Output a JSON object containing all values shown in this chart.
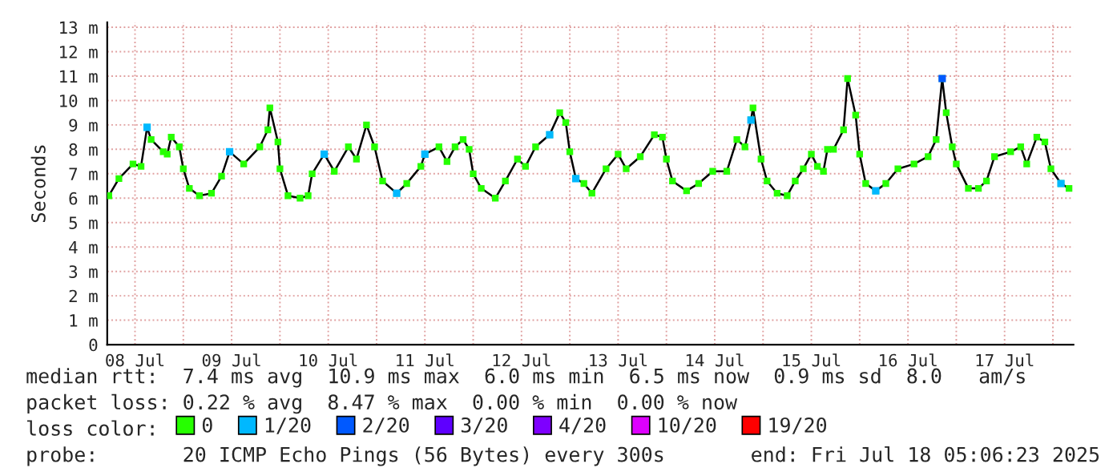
{
  "chart_data": {
    "type": "line",
    "ylabel": "Seconds",
    "x": [
      "2025-07-08T05:30",
      "2025-07-08T08:00",
      "2025-07-08T11:30",
      "2025-07-08T13:30",
      "2025-07-08T15:00",
      "2025-07-08T16:00",
      "2025-07-08T19:00",
      "2025-07-08T20:00",
      "2025-07-08T21:00",
      "2025-07-08T23:00",
      "2025-07-09T00:00",
      "2025-07-09T01:30",
      "2025-07-09T04:00",
      "2025-07-09T07:00",
      "2025-07-09T09:30",
      "2025-07-09T11:30",
      "2025-07-09T15:00",
      "2025-07-09T19:00",
      "2025-07-09T21:00",
      "2025-07-09T21:30",
      "2025-07-09T23:30",
      "2025-07-10T00:00",
      "2025-07-10T02:00",
      "2025-07-10T05:00",
      "2025-07-10T07:00",
      "2025-07-10T08:00",
      "2025-07-10T11:00",
      "2025-07-10T13:30",
      "2025-07-10T17:00",
      "2025-07-10T19:00",
      "2025-07-10T21:30",
      "2025-07-10T23:30",
      "2025-07-11T01:30",
      "2025-07-11T05:00",
      "2025-07-11T07:30",
      "2025-07-11T11:00",
      "2025-07-11T12:00",
      "2025-07-11T15:30",
      "2025-07-11T17:30",
      "2025-07-11T19:30",
      "2025-07-11T21:30",
      "2025-07-11T23:00",
      "2025-07-12T00:00",
      "2025-07-12T02:00",
      "2025-07-12T05:30",
      "2025-07-12T08:00",
      "2025-07-12T11:00",
      "2025-07-12T13:00",
      "2025-07-12T15:30",
      "2025-07-12T19:00",
      "2025-07-12T21:30",
      "2025-07-12T23:00",
      "2025-07-13T00:00",
      "2025-07-13T01:30",
      "2025-07-13T03:30",
      "2025-07-13T05:30",
      "2025-07-13T09:00",
      "2025-07-13T12:00",
      "2025-07-13T14:00",
      "2025-07-13T17:30",
      "2025-07-13T21:00",
      "2025-07-13T23:00",
      "2025-07-14T00:00",
      "2025-07-14T01:30",
      "2025-07-14T05:00",
      "2025-07-14T08:00",
      "2025-07-14T11:30",
      "2025-07-14T15:00",
      "2025-07-14T17:30",
      "2025-07-14T19:30",
      "2025-07-14T21:00",
      "2025-07-14T21:30",
      "2025-07-14T23:30",
      "2025-07-15T01:00",
      "2025-07-15T03:30",
      "2025-07-15T06:00",
      "2025-07-15T08:00",
      "2025-07-15T10:00",
      "2025-07-15T12:00",
      "2025-07-15T13:30",
      "2025-07-15T15:00",
      "2025-07-15T16:00",
      "2025-07-15T17:30",
      "2025-07-15T20:00",
      "2025-07-15T21:00",
      "2025-07-15T23:00",
      "2025-07-16T00:00",
      "2025-07-16T01:30",
      "2025-07-16T04:00",
      "2025-07-16T06:30",
      "2025-07-16T09:30",
      "2025-07-16T13:30",
      "2025-07-16T17:00",
      "2025-07-16T19:00",
      "2025-07-16T20:30",
      "2025-07-16T21:30",
      "2025-07-16T23:00",
      "2025-07-17T00:00",
      "2025-07-17T03:00",
      "2025-07-17T05:30",
      "2025-07-17T07:30",
      "2025-07-17T09:30",
      "2025-07-17T13:30",
      "2025-07-17T16:00",
      "2025-07-17T17:30",
      "2025-07-17T20:00",
      "2025-07-17T22:00",
      "2025-07-17T23:30",
      "2025-07-18T02:00",
      "2025-07-18T04:00"
    ],
    "series": [
      {
        "name": "0",
        "color": "#26ff00",
        "values": [
          6.1,
          6.8,
          7.4,
          7.3,
          8.9,
          8.4,
          7.9,
          7.8,
          8.5,
          8.1,
          7.2,
          6.4,
          6.1,
          6.2,
          6.9,
          7.9,
          7.4,
          8.1,
          8.8,
          9.7,
          8.3,
          7.2,
          6.1,
          6.0,
          6.1,
          7.0,
          7.8,
          7.1,
          8.1,
          7.6,
          9.0,
          8.1,
          6.7,
          6.2,
          6.6,
          7.3,
          7.8,
          8.1,
          7.5,
          8.1,
          8.4,
          8.0,
          7.0,
          6.4,
          6.0,
          6.7,
          7.6,
          7.3,
          8.1,
          8.6,
          9.5,
          9.1,
          7.9,
          6.8,
          6.6,
          6.2,
          7.2,
          7.8,
          7.2,
          7.7,
          8.6,
          8.5,
          7.6,
          6.7,
          6.3,
          6.6,
          7.1,
          7.1,
          8.4,
          8.1,
          9.2,
          9.7,
          7.6,
          6.7,
          6.2,
          6.1,
          6.7,
          7.2,
          7.8,
          7.3,
          7.1,
          8.0,
          8.0,
          8.8,
          10.9,
          9.4,
          7.8,
          6.6,
          6.3,
          6.6,
          7.2,
          7.4,
          7.7,
          8.4,
          10.9,
          9.5,
          8.1,
          7.4,
          6.4,
          6.4,
          6.7,
          7.7,
          7.9,
          8.1,
          7.4,
          8.5,
          8.3,
          7.2,
          6.6,
          6.4
        ]
      },
      {
        "name": "1/20",
        "color": "#00b8ff",
        "type": "scatter",
        "x": [
          "2025-07-08T15:00",
          "2025-07-09T11:30",
          "2025-07-10T11:00",
          "2025-07-11T05:00",
          "2025-07-11T12:00",
          "2025-07-12T19:00",
          "2025-07-13T01:30",
          "2025-07-14T21:00",
          "2025-07-16T04:00",
          "2025-07-18T02:00"
        ],
        "values": [
          8.9,
          7.9,
          7.8,
          6.2,
          7.8,
          8.6,
          6.8,
          9.2,
          6.3,
          6.6
        ]
      },
      {
        "name": "2/20",
        "color": "#0059ff",
        "type": "scatter",
        "x": [
          "2025-07-16T20:30"
        ],
        "values": [
          10.9
        ]
      },
      {
        "name": "3/20",
        "color": "#5e00ff",
        "type": "scatter",
        "values": [
          null,
          null,
          null,
          null,
          null,
          null,
          null,
          null,
          null,
          null,
          null,
          null,
          null,
          null,
          null,
          null,
          null,
          null,
          null,
          null,
          null,
          null,
          null,
          null,
          null,
          null,
          null,
          null,
          null,
          null,
          null,
          null,
          null,
          null,
          null,
          null,
          null,
          null,
          null,
          null,
          null,
          null,
          null,
          null,
          null,
          null,
          null,
          null,
          null,
          null,
          null,
          null,
          null,
          null,
          null,
          null,
          null,
          null,
          null,
          null,
          null,
          null,
          null,
          null,
          null,
          null,
          null,
          null,
          null,
          null,
          null,
          null,
          null,
          null,
          null,
          null,
          null,
          null,
          null,
          null,
          null,
          null,
          null,
          null,
          null,
          null,
          null,
          null,
          null,
          null,
          null,
          null,
          null,
          null,
          null,
          null,
          null,
          null,
          null,
          null,
          null,
          null,
          null,
          null,
          null,
          null,
          null,
          null,
          null,
          null
        ]
      },
      {
        "name": "4/20",
        "color": "#7e00ff",
        "type": "scatter",
        "values": [
          null,
          null,
          null,
          null,
          null,
          null,
          null,
          null,
          null,
          null,
          null,
          null,
          null,
          null,
          null,
          null,
          null,
          null,
          null,
          null,
          null,
          null,
          null,
          null,
          null,
          null,
          null,
          null,
          null,
          null,
          null,
          null,
          null,
          null,
          null,
          null,
          null,
          null,
          null,
          null,
          null,
          null,
          null,
          null,
          null,
          null,
          null,
          null,
          null,
          null,
          null,
          null,
          null,
          null,
          null,
          null,
          null,
          null,
          null,
          null,
          null,
          null,
          null,
          null,
          null,
          null,
          null,
          null,
          null,
          null,
          null,
          null,
          null,
          null,
          null,
          null,
          null,
          null,
          null,
          null,
          null,
          null,
          null,
          null,
          null,
          null,
          null,
          null,
          null,
          null,
          null,
          null,
          null,
          null,
          null,
          null,
          null,
          null,
          null,
          null,
          null,
          null,
          null,
          null,
          null,
          null,
          null,
          null,
          null,
          null
        ]
      },
      {
        "name": "10/20",
        "color": "#dd00ff",
        "type": "scatter",
        "values": [
          null,
          null,
          null,
          null,
          null,
          null,
          null,
          null,
          null,
          null,
          null,
          null,
          null,
          null,
          null,
          null,
          null,
          null,
          null,
          null,
          null,
          null,
          null,
          null,
          null,
          null,
          null,
          null,
          null,
          null,
          null,
          null,
          null,
          null,
          null,
          null,
          null,
          null,
          null,
          null,
          null,
          null,
          null,
          null,
          null,
          null,
          null,
          null,
          null,
          null,
          null,
          null,
          null,
          null,
          null,
          null,
          null,
          null,
          null,
          null,
          null,
          null,
          null,
          null,
          null,
          null,
          null,
          null,
          null,
          null,
          null,
          null,
          null,
          null,
          null,
          null,
          null,
          null,
          null,
          null,
          null,
          null,
          null,
          null,
          null,
          null,
          null,
          null,
          null,
          null,
          null,
          null,
          null,
          null,
          null,
          null,
          null,
          null,
          null,
          null,
          null,
          null,
          null,
          null,
          null,
          null,
          null,
          null,
          null,
          null
        ]
      },
      {
        "name": "19/20",
        "color": "#ff0000",
        "type": "scatter",
        "values": [
          null,
          null,
          null,
          null,
          null,
          null,
          null,
          null,
          null,
          null,
          null,
          null,
          null,
          null,
          null,
          null,
          null,
          null,
          null,
          null,
          null,
          null,
          null,
          null,
          null,
          null,
          null,
          null,
          null,
          null,
          null,
          null,
          null,
          null,
          null,
          null,
          null,
          null,
          null,
          null,
          null,
          null,
          null,
          null,
          null,
          null,
          null,
          null,
          null,
          null,
          null,
          null,
          null,
          null,
          null,
          null,
          null,
          null,
          null,
          null,
          null,
          null,
          null,
          null,
          null,
          null,
          null,
          null,
          null,
          null,
          null,
          null,
          null,
          null,
          null,
          null,
          null,
          null,
          null,
          null,
          null,
          null,
          null,
          null,
          null,
          null,
          null,
          null,
          null,
          null,
          null,
          null,
          null,
          null,
          null,
          null,
          null,
          null,
          null,
          null,
          null,
          null,
          null,
          null,
          null,
          null,
          null,
          null,
          null,
          null
        ]
      }
    ],
    "marker": "square",
    "xlim": [
      "2025-07-08T05:06",
      "2025-07-18T05:06"
    ],
    "xticks": [
      {
        "value": "2025-07-08T12:00",
        "label": "08 Jul"
      },
      {
        "value": "2025-07-09T00:00",
        "label": null
      },
      {
        "value": "2025-07-09T12:00",
        "label": "09 Jul"
      },
      {
        "value": "2025-07-10T00:00",
        "label": null
      },
      {
        "value": "2025-07-10T12:00",
        "label": "10 Jul"
      },
      {
        "value": "2025-07-11T00:00",
        "label": null
      },
      {
        "value": "2025-07-11T12:00",
        "label": "11 Jul"
      },
      {
        "value": "2025-07-12T00:00",
        "label": null
      },
      {
        "value": "2025-07-12T12:00",
        "label": "12 Jul"
      },
      {
        "value": "2025-07-13T00:00",
        "label": null
      },
      {
        "value": "2025-07-13T12:00",
        "label": "13 Jul"
      },
      {
        "value": "2025-07-14T00:00",
        "label": null
      },
      {
        "value": "2025-07-14T12:00",
        "label": "14 Jul"
      },
      {
        "value": "2025-07-15T00:00",
        "label": null
      },
      {
        "value": "2025-07-15T12:00",
        "label": "15 Jul"
      },
      {
        "value": "2025-07-16T00:00",
        "label": null
      },
      {
        "value": "2025-07-16T12:00",
        "label": "16 Jul"
      },
      {
        "value": "2025-07-17T00:00",
        "label": null
      },
      {
        "value": "2025-07-17T12:00",
        "label": "17 Jul"
      },
      {
        "value": "2025-07-18T00:00",
        "label": null
      }
    ],
    "ylim": [
      0,
      13.2
    ],
    "yticks": [
      0,
      {
        "value": 1,
        "label": "1 m"
      },
      {
        "value": 2,
        "label": "2 m"
      },
      {
        "value": 3,
        "label": "3 m"
      },
      {
        "value": 4,
        "label": "4 m"
      },
      {
        "value": 5,
        "label": "5 m"
      },
      {
        "value": 6,
        "label": "6 m"
      },
      {
        "value": 7,
        "label": "7 m"
      },
      {
        "value": 8,
        "label": "8 m"
      },
      {
        "value": 9,
        "label": "9 m"
      },
      {
        "value": 10,
        "label": "10 m"
      },
      {
        "value": 11,
        "label": "11 m"
      },
      {
        "value": 12,
        "label": "12 m"
      },
      {
        "value": 13,
        "label": "13 m"
      }
    ],
    "grid": true,
    "legend": "bottom",
    "annotations": [
      "median rtt:  7.4 ms avg  10.9 ms max  6.0 ms min  6.5 ms now  0.9 ms sd  8.0   am/s",
      "packet loss: 0.22 % avg  8.47 % max  0.00 % min  0.00 % now",
      "loss color:",
      "probe:       20 ICMP Echo Pings (56 Bytes) every 300s",
      "end: Fri Jul 18 05:06:23 2025"
    ]
  }
}
